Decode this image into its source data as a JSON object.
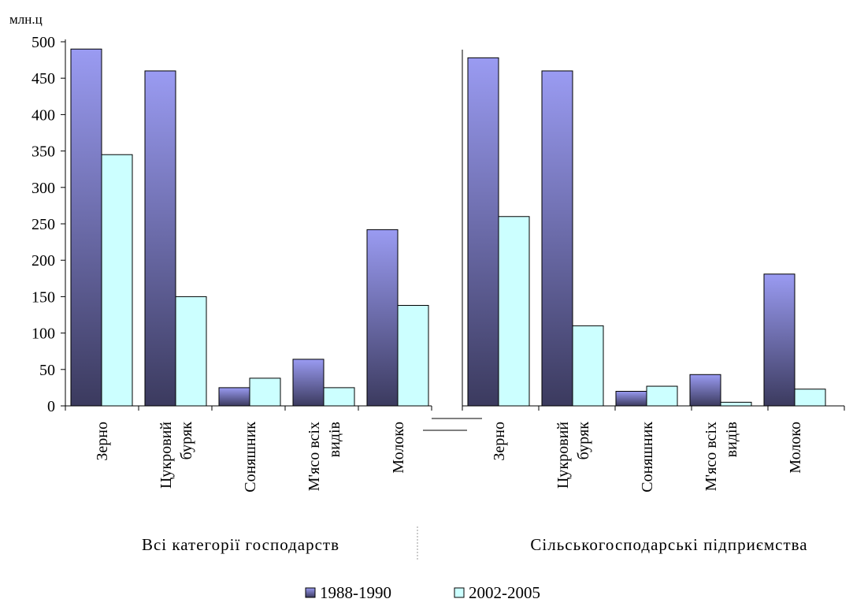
{
  "chart_data": {
    "type": "bar",
    "ylabel": "млн.ц",
    "ylim": [
      0,
      500
    ],
    "yticks": [
      0,
      50,
      100,
      150,
      200,
      250,
      300,
      350,
      400,
      450,
      500
    ],
    "legend_position": "bottom",
    "grid": false,
    "groups": [
      {
        "label": "Всі категорії господарств",
        "categories": [
          [
            "Зерно"
          ],
          [
            "Цукровий",
            "буряк"
          ],
          [
            "Соняшник"
          ],
          [
            "М'ясо всіх",
            "видів"
          ],
          [
            "Молоко"
          ]
        ],
        "series": [
          {
            "name": "1988-1990",
            "values": [
              490,
              460,
              25,
              64,
              242
            ]
          },
          {
            "name": "2002-2005",
            "values": [
              345,
              150,
              38,
              25,
              138
            ]
          }
        ]
      },
      {
        "label": "Сільськогосподарські підприємства",
        "categories": [
          [
            "Зерно"
          ],
          [
            "Цукровий",
            "буряк"
          ],
          [
            "Соняшник"
          ],
          [
            "М'ясо всіх",
            "видів"
          ],
          [
            "Молоко"
          ]
        ],
        "series": [
          {
            "name": "1988-1990",
            "values": [
              478,
              460,
              20,
              43,
              181
            ]
          },
          {
            "name": "2002-2005",
            "values": [
              260,
              110,
              27,
              5,
              23
            ]
          }
        ]
      }
    ],
    "legend": [
      {
        "name": "1988-1990",
        "color": "#7f80e0"
      },
      {
        "name": "2002-2005",
        "color": "#ccffff"
      }
    ]
  }
}
